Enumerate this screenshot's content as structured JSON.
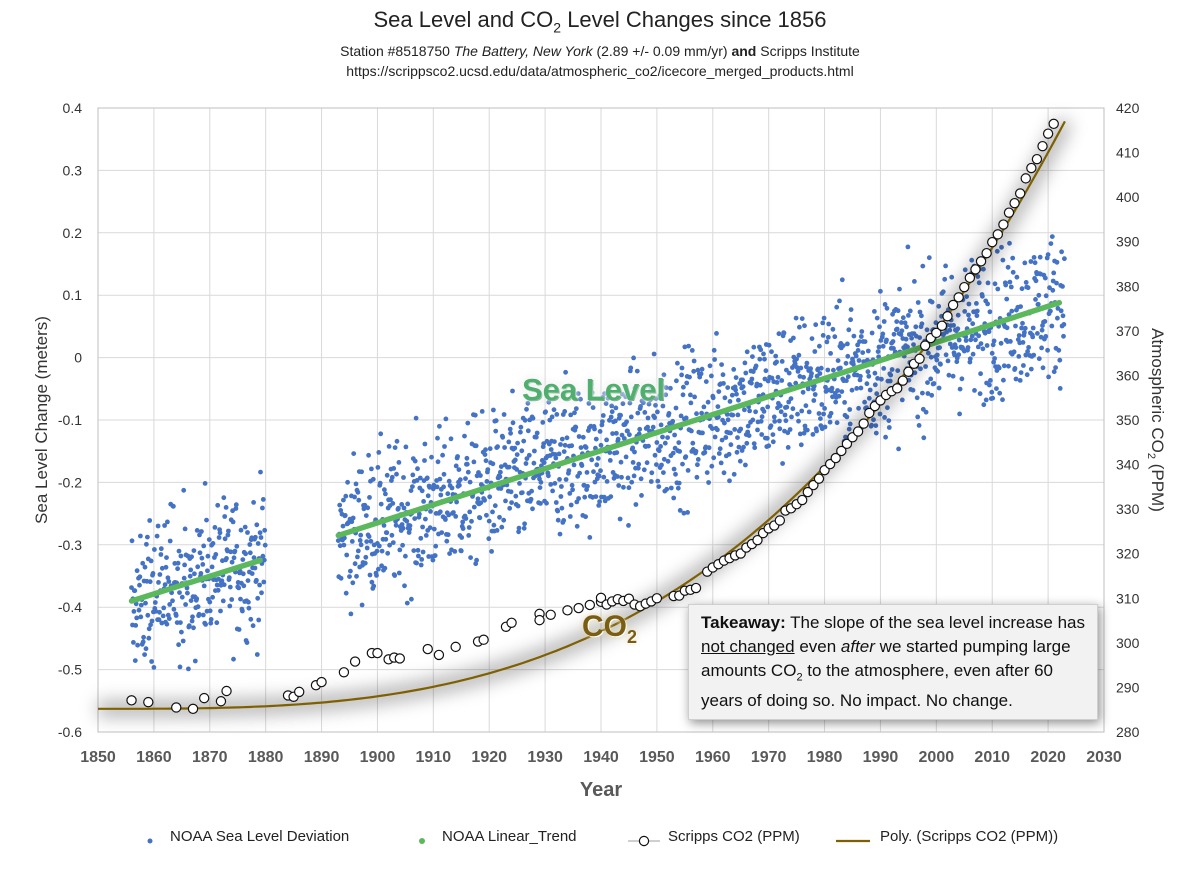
{
  "title": {
    "prefix": "Sea Level and CO",
    "sub": "2",
    "suffix": " Level Changes since 1856"
  },
  "subtitle": {
    "line1_a": "Station #8518750 ",
    "line1_b": "The Battery, New York",
    "line1_c": " (2.89 +/- 0.09 mm/yr) ",
    "line1_d": "and",
    "line1_e": " Scripps Institute",
    "line2": "https://scrippsco2.ucsd.edu/data/atmospheric_co2/icecore_merged_products.html"
  },
  "takeaway": {
    "bold": "Takeaway:",
    "t1": " The slope of the sea level increase has ",
    "underlined": "not changed",
    "t2": " even ",
    "italic": "after",
    "t3": " we started pumping large amounts CO",
    "sub": "2",
    "t4": " to the atmosphere, even after 60 years of doing so. No impact. No change."
  },
  "annotations": {
    "sea_level": "Sea Level",
    "co2": "CO",
    "co2_sub": "2"
  },
  "legend": [
    {
      "label": "NOAA Sea Level Deviation",
      "icon": "blue-dot-icon"
    },
    {
      "label": "NOAA Linear_Trend",
      "icon": "green-dot-icon"
    },
    {
      "label": "Scripps CO2 (PPM)",
      "icon": "open-circle-icon"
    },
    {
      "label": "Poly. (Scripps CO2 (PPM))",
      "icon": "brown-line-icon"
    }
  ],
  "colors": {
    "sea": "#4472c4",
    "trend": "#5cb85c",
    "co2_curve": "#7f6000",
    "grid": "#d9d9d9"
  },
  "chart_data": {
    "type": "scatter",
    "xlabel": "Year",
    "ylabel_left": "Sea Level Change (meters)",
    "ylabel_right": "Atmospheric CO2 (PPM)",
    "xlim": [
      1850,
      2030
    ],
    "ylim_left": [
      -0.6,
      0.4
    ],
    "ylim_right": [
      280,
      420
    ],
    "x_ticks": [
      1850,
      1860,
      1870,
      1880,
      1890,
      1900,
      1910,
      1920,
      1930,
      1940,
      1950,
      1960,
      1970,
      1980,
      1990,
      2000,
      2010,
      2020,
      2030
    ],
    "y_ticks_left": [
      -0.6,
      -0.5,
      -0.4,
      -0.3,
      -0.2,
      -0.1,
      0,
      0.1,
      0.2,
      0.3,
      0.4
    ],
    "y_ticks_right": [
      280,
      290,
      300,
      310,
      320,
      330,
      340,
      350,
      360,
      370,
      380,
      390,
      400,
      410,
      420
    ],
    "sea_level_trend": {
      "slope_mm_per_yr": 2.89,
      "segments": [
        {
          "x": [
            1856,
            1879
          ],
          "y": [
            -0.39,
            -0.325
          ]
        },
        {
          "x": [
            1893,
            2022
          ],
          "y": [
            -0.285,
            0.088
          ]
        }
      ]
    },
    "sea_level_monthly": {
      "periods": [
        [
          1856,
          1879
        ],
        [
          1893,
          2022
        ]
      ],
      "spread_m": 0.11,
      "note": "monthly deviations scattered around the linear trend"
    },
    "co2_ppm": {
      "x": [
        1856,
        1859,
        1864,
        1867,
        1869,
        1872,
        1873,
        1884,
        1885,
        1886,
        1889,
        1890,
        1894,
        1896,
        1899,
        1900,
        1902,
        1903,
        1904,
        1909,
        1911,
        1914,
        1918,
        1919,
        1923,
        1924,
        1929,
        1929,
        1931,
        1934,
        1936,
        1938,
        1940,
        1940,
        1941,
        1942,
        1943,
        1944,
        1945,
        1946,
        1947,
        1948,
        1949,
        1950,
        1953,
        1954,
        1955,
        1956,
        1957,
        1959,
        1960,
        1961,
        1962,
        1963,
        1964,
        1965,
        1966,
        1967,
        1968,
        1969,
        1970,
        1971,
        1972,
        1973,
        1974,
        1975,
        1976,
        1977,
        1978,
        1979,
        1980,
        1981,
        1982,
        1983,
        1984,
        1985,
        1986,
        1987,
        1988,
        1989,
        1990,
        1991,
        1992,
        1993,
        1994,
        1995,
        1996,
        1997,
        1998,
        1999,
        2000,
        2001,
        2002,
        2003,
        2004,
        2005,
        2006,
        2007,
        2008,
        2009,
        2010,
        2011,
        2012,
        2013,
        2014,
        2015,
        2016,
        2017,
        2018,
        2019,
        2020,
        2021
      ],
      "y": [
        287.1,
        286.7,
        285.5,
        285.2,
        287.6,
        286.9,
        289.2,
        288.2,
        287.9,
        289,
        290.5,
        291.2,
        293.4,
        295.8,
        297.7,
        297.7,
        296.3,
        296.7,
        296.5,
        298.6,
        297.3,
        299.1,
        300.3,
        300.7,
        303.6,
        304.5,
        306.5,
        305.1,
        306.3,
        307.3,
        307.8,
        308.5,
        309.2,
        310.1,
        308.6,
        309.3,
        309.8,
        309.4,
        309.9,
        308.6,
        308.2,
        308.8,
        309.3,
        310,
        310.5,
        310.6,
        311.7,
        311.9,
        312.3,
        315.97,
        316.91,
        317.64,
        318.45,
        318.99,
        319.62,
        320.04,
        321.38,
        322.16,
        323.04,
        324.62,
        325.68,
        326.32,
        327.45,
        329.68,
        330.18,
        331.11,
        332.04,
        333.83,
        335.4,
        336.84,
        338.75,
        340.11,
        341.45,
        343.05,
        344.65,
        346.12,
        347.42,
        349.19,
        351.57,
        353.12,
        354.39,
        355.61,
        356.45,
        357.1,
        358.83,
        360.82,
        362.61,
        363.73,
        366.7,
        368.38,
        369.55,
        371.14,
        373.28,
        375.8,
        377.52,
        379.8,
        381.9,
        383.79,
        385.6,
        387.43,
        389.9,
        391.65,
        393.85,
        396.52,
        398.65,
        400.83,
        404.21,
        406.53,
        408.52,
        411.44,
        414.24,
        416.45
      ]
    },
    "co2_poly_fit": {
      "x_range": [
        1850,
        2023
      ],
      "y_start": 285.2,
      "y_end": 417
    }
  }
}
